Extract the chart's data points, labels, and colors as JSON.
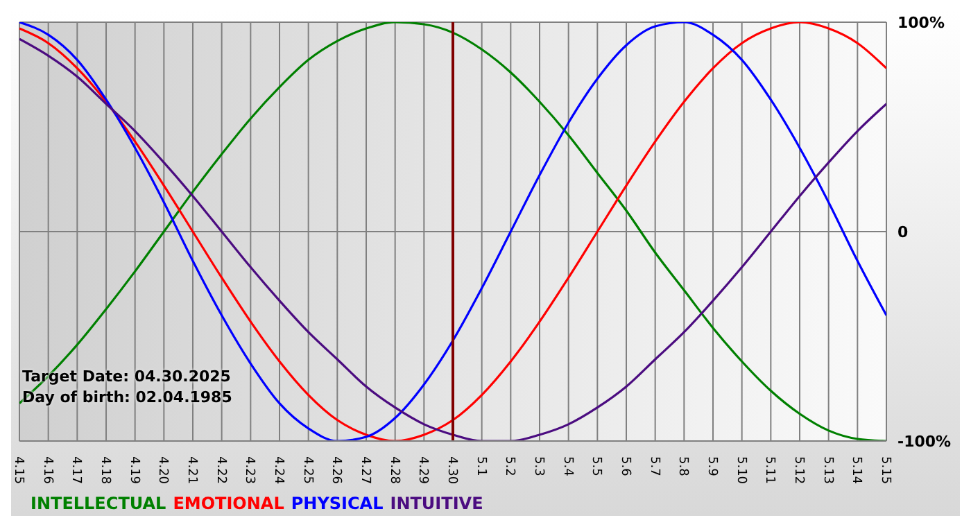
{
  "chart_data": {
    "type": "line",
    "categories": [
      "4.15",
      "4.16",
      "4.17",
      "4.18",
      "4.19",
      "4.20",
      "4.21",
      "4.22",
      "4.23",
      "4.24",
      "4.25",
      "4.26",
      "4.27",
      "4.28",
      "4.29",
      "4.30",
      "5.1",
      "5.2",
      "5.3",
      "5.4",
      "5.5",
      "5.6",
      "5.7",
      "5.8",
      "5.9",
      "5.10",
      "5.11",
      "5.12",
      "5.13",
      "5.14",
      "5.15"
    ],
    "series": [
      {
        "name": "INTELLECTUAL",
        "color": "#008000",
        "values": [
          -82,
          -69,
          -54,
          -37,
          -19,
          0,
          19,
          37,
          54,
          69,
          82,
          91,
          97,
          100,
          99,
          95,
          87,
          76,
          62,
          46,
          28,
          10,
          -10,
          -28,
          -46,
          -62,
          -76,
          -87,
          -95,
          -99,
          -100
        ]
      },
      {
        "name": "EMOTIONAL",
        "color": "#ff0000",
        "values": [
          97,
          90,
          78,
          62,
          43,
          22,
          0,
          -22,
          -43,
          -62,
          -78,
          -90,
          -97,
          -100,
          -97,
          -90,
          -78,
          -62,
          -43,
          -22,
          0,
          22,
          43,
          62,
          78,
          90,
          97,
          100,
          97,
          90,
          78
        ]
      },
      {
        "name": "PHYSICAL",
        "color": "#0000ff",
        "values": [
          100,
          94,
          82,
          63,
          40,
          14,
          -14,
          -40,
          -63,
          -82,
          -94,
          -100,
          -98,
          -89,
          -73,
          -52,
          -27,
          0,
          27,
          52,
          73,
          89,
          98,
          100,
          94,
          82,
          63,
          40,
          14,
          -14,
          -40
        ]
      },
      {
        "name": "INTUITIVE",
        "color": "#4b0c80",
        "values": [
          92,
          84,
          74,
          61,
          48,
          33,
          17,
          0,
          -17,
          -33,
          -48,
          -61,
          -74,
          -84,
          -92,
          -97,
          -100,
          -100,
          -97,
          -92,
          -84,
          -74,
          -61,
          -48,
          -33,
          -17,
          0,
          17,
          33,
          48,
          61
        ]
      }
    ],
    "ylim": [
      -100,
      100
    ],
    "yticks": [
      {
        "value": -100,
        "label": "-100%"
      },
      0,
      {
        "value": 100,
        "label": "100%"
      }
    ],
    "ref_lines": [
      {
        "axis": "x",
        "value": "4.30",
        "color": "#800000"
      }
    ],
    "annotations": [
      "Target Date: 04.30.2025",
      "Day of birth: 02.04.1985"
    ],
    "grid": true,
    "legend": "bottom left",
    "marker": "none",
    "line_style": "solid"
  }
}
